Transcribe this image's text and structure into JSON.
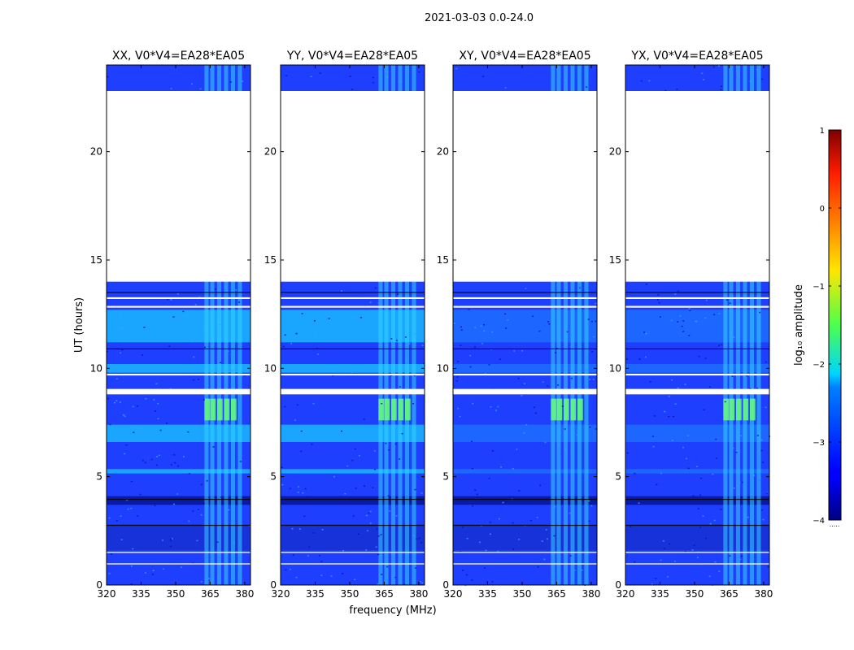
{
  "chart_data": {
    "type": "heatmap",
    "suptitle": "2021-03-03 0.0-24.0",
    "xlabel": "frequency (MHz)",
    "ylabel": "UT (hours)",
    "xlim": [
      320,
      382.5
    ],
    "ylim": [
      0,
      24
    ],
    "xticks": [
      320,
      335,
      350,
      365,
      380
    ],
    "yticks": [
      0,
      5,
      10,
      15,
      20
    ],
    "panels": [
      {
        "title": "XX, V0*V4=EA28*EA05"
      },
      {
        "title": "YY, V0*V4=EA28*EA05"
      },
      {
        "title": "XY, V0*V4=EA28*EA05"
      },
      {
        "title": "YX, V0*V4=EA28*EA05"
      }
    ],
    "missing_data_hours": [
      [
        0.95,
        1.0
      ],
      [
        1.48,
        1.53
      ],
      [
        8.8,
        9.05
      ],
      [
        9.67,
        9.75
      ],
      [
        12.8,
        12.88
      ],
      [
        13.2,
        13.28
      ],
      [
        14.0,
        22.8
      ]
    ],
    "colorbar": {
      "label": "log₁₀ amplitude",
      "min": -4,
      "max": 1,
      "ticks": [
        1,
        0,
        -1,
        -2,
        -3,
        -4
      ],
      "tick_labels": [
        "1",
        "0",
        "−1",
        "−2",
        "−3",
        "−4"
      ],
      "colormap": "jet"
    },
    "footnote": "....."
  }
}
